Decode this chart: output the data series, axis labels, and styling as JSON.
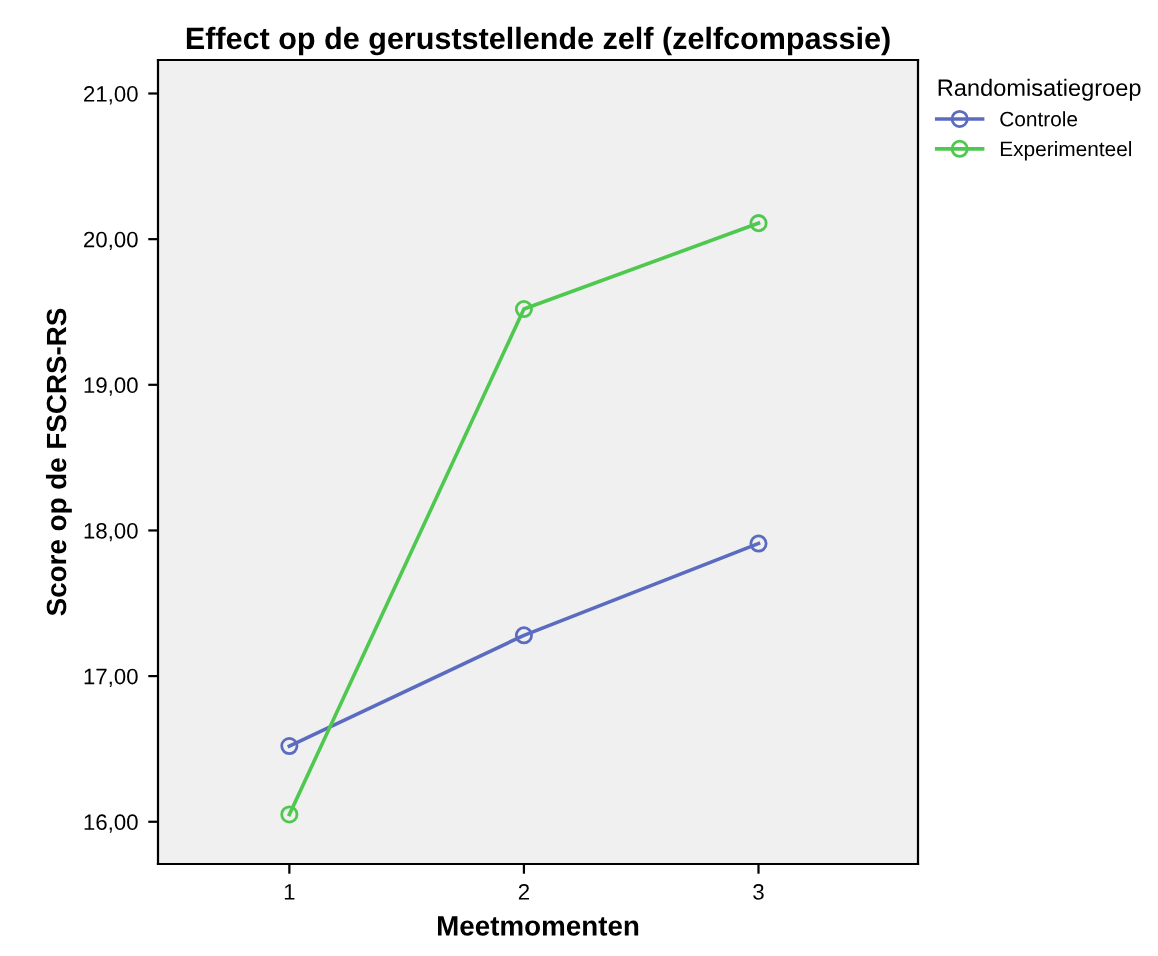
{
  "chart_data": {
    "type": "line",
    "title": "Effect op de geruststellende zelf (zelfcompassie)",
    "xlabel": "Meetmomenten",
    "ylabel": "Score op de FSCRS-RS",
    "legend_title": "Randomisatiegroep",
    "legend": "top right",
    "x": [
      1,
      2,
      3
    ],
    "series": [
      {
        "name": "Controle",
        "color": "#5b6bc0",
        "values": [
          16.52,
          17.28,
          17.91
        ]
      },
      {
        "name": "Experimenteel",
        "color": "#4fc84f",
        "values": [
          16.05,
          19.52,
          20.11
        ]
      }
    ],
    "marker": "circle",
    "line_style": "solid",
    "xlim": [
      0.44,
      3.68
    ],
    "xticks": [
      1,
      2,
      3
    ],
    "ylim": [
      15.71,
      21.23
    ],
    "yticks": [
      {
        "value": 16,
        "label": "16,00"
      },
      {
        "value": 17,
        "label": "17,00"
      },
      {
        "value": 18,
        "label": "18,00"
      },
      {
        "value": 19,
        "label": "19,00"
      },
      {
        "value": 20,
        "label": "20,00"
      },
      {
        "value": 21,
        "label": "21,00"
      }
    ]
  }
}
